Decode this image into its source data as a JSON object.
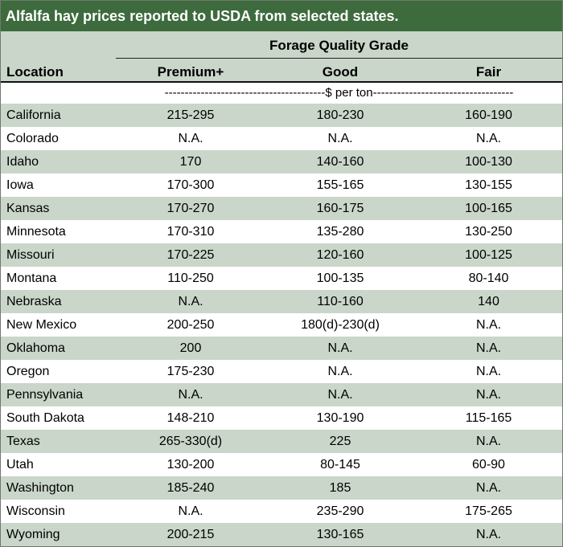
{
  "title": "Alfalfa hay prices reported to USDA from selected states.",
  "header": {
    "group_label": "Forage Quality Grade",
    "location_label": "Location",
    "columns": [
      "Premium+",
      "Good",
      "Fair"
    ],
    "unit_label": "----------------------------------------$ per ton-----------------------------------"
  },
  "rows": [
    {
      "location": "California",
      "premium": "215-295",
      "good": "180-230",
      "fair": "160-190"
    },
    {
      "location": "Colorado",
      "premium": "N.A.",
      "good": "N.A.",
      "fair": "N.A."
    },
    {
      "location": "Idaho",
      "premium": "170",
      "good": "140-160",
      "fair": "100-130"
    },
    {
      "location": "Iowa",
      "premium": "170-300",
      "good": "155-165",
      "fair": "130-155"
    },
    {
      "location": "Kansas",
      "premium": "170-270",
      "good": "160-175",
      "fair": "100-165"
    },
    {
      "location": "Minnesota",
      "premium": "170-310",
      "good": "135-280",
      "fair": "130-250"
    },
    {
      "location": "Missouri",
      "premium": "170-225",
      "good": "120-160",
      "fair": "100-125"
    },
    {
      "location": "Montana",
      "premium": "110-250",
      "good": "100-135",
      "fair": "80-140"
    },
    {
      "location": "Nebraska",
      "premium": "N.A.",
      "good": "110-160",
      "fair": "140"
    },
    {
      "location": "New Mexico",
      "premium": "200-250",
      "good": "180(d)-230(d)",
      "fair": "N.A."
    },
    {
      "location": "Oklahoma",
      "premium": "200",
      "good": "N.A.",
      "fair": "N.A."
    },
    {
      "location": "Oregon",
      "premium": "175-230",
      "good": "N.A.",
      "fair": "N.A."
    },
    {
      "location": "Pennsylvania",
      "premium": "N.A.",
      "good": "N.A.",
      "fair": "N.A."
    },
    {
      "location": "South Dakota",
      "premium": "148-210",
      "good": "130-190",
      "fair": "115-165"
    },
    {
      "location": "Texas",
      "premium": "265-330(d)",
      "good": "225",
      "fair": "N.A."
    },
    {
      "location": "Utah",
      "premium": "130-200",
      "good": "80-145",
      "fair": "60-90"
    },
    {
      "location": "Washington",
      "premium": "185-240",
      "good": "185",
      "fair": "N.A."
    },
    {
      "location": "Wisconsin",
      "premium": "N.A.",
      "good": "235-290",
      "fair": "175-265"
    },
    {
      "location": "Wyoming",
      "premium": "200-215",
      "good": "130-165",
      "fair": "N.A."
    }
  ],
  "colors": {
    "title_bar": "#3d6b3d",
    "shade": "#c9d6c9",
    "title_text": "#ffffff"
  }
}
